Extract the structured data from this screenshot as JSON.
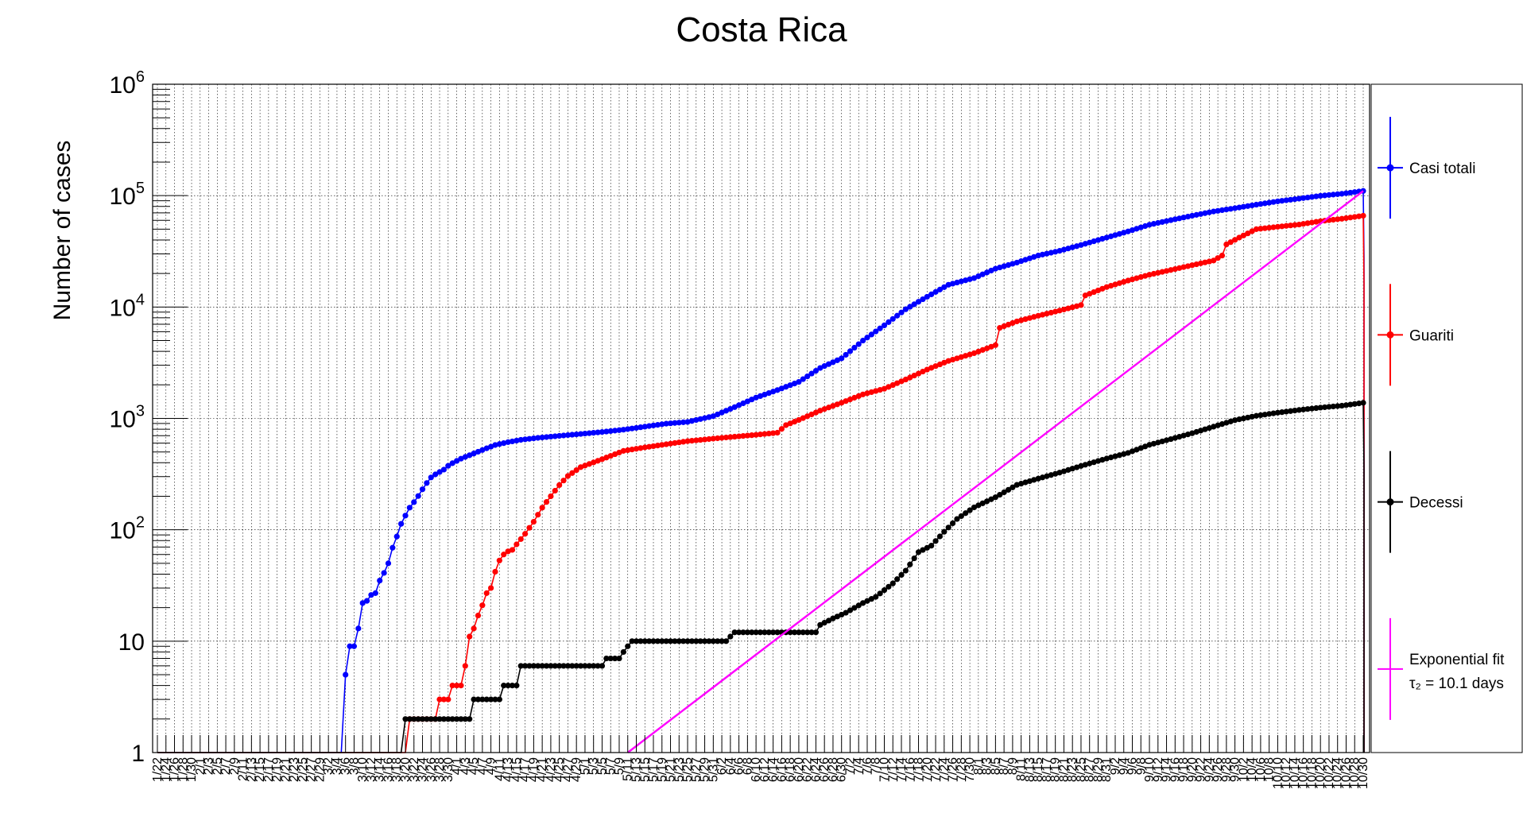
{
  "chart_data": {
    "type": "line",
    "title": "Costa Rica",
    "xlabel": "",
    "ylabel": "Number of cases",
    "yscale": "log",
    "ylim": [
      1,
      1000000
    ],
    "y_tick_labels": [
      {
        "value": 1,
        "base": "1",
        "exp": ""
      },
      {
        "value": 10,
        "base": "10",
        "exp": ""
      },
      {
        "value": 100,
        "base": "10",
        "exp": "2"
      },
      {
        "value": 1000,
        "base": "10",
        "exp": "3"
      },
      {
        "value": 10000,
        "base": "10",
        "exp": "4"
      },
      {
        "value": 100000,
        "base": "10",
        "exp": "5"
      },
      {
        "value": 1000000,
        "base": "10",
        "exp": "6"
      }
    ],
    "x_start": "1/22",
    "x_end": "10/30",
    "x_tick_step_days": 2,
    "grid": true,
    "legend_position": "right",
    "series": [
      {
        "name": "Casi totali",
        "color": "#0000ff",
        "points": [
          [
            "3/5",
            1
          ],
          [
            "3/6",
            5
          ],
          [
            "3/7",
            9
          ],
          [
            "3/8",
            9
          ],
          [
            "3/9",
            13
          ],
          [
            "3/10",
            22
          ],
          [
            "3/11",
            23
          ],
          [
            "3/12",
            26
          ],
          [
            "3/13",
            27
          ],
          [
            "3/14",
            35
          ],
          [
            "3/15",
            41
          ],
          [
            "3/16",
            50
          ],
          [
            "3/17",
            69
          ],
          [
            "3/18",
            87
          ],
          [
            "3/19",
            113
          ],
          [
            "3/20",
            134
          ],
          [
            "3/21",
            158
          ],
          [
            "3/22",
            177
          ],
          [
            "3/23",
            201
          ],
          [
            "3/24",
            231
          ],
          [
            "3/25",
            263
          ],
          [
            "3/26",
            295
          ],
          [
            "3/27",
            314
          ],
          [
            "3/28",
            330
          ],
          [
            "3/29",
            347
          ],
          [
            "3/30",
            375
          ],
          [
            "3/31",
            396
          ],
          [
            "4/2",
            435
          ],
          [
            "4/4",
            467
          ],
          [
            "4/6",
            502
          ],
          [
            "4/8",
            539
          ],
          [
            "4/10",
            577
          ],
          [
            "4/13",
            612
          ],
          [
            "4/16",
            642
          ],
          [
            "4/20",
            669
          ],
          [
            "4/25",
            697
          ],
          [
            "4/30",
            725
          ],
          [
            "5/5",
            755
          ],
          [
            "5/10",
            792
          ],
          [
            "5/15",
            843
          ],
          [
            "5/20",
            897
          ],
          [
            "5/25",
            930
          ],
          [
            "5/31",
            1047
          ],
          [
            "6/5",
            1263
          ],
          [
            "6/10",
            1538
          ],
          [
            "6/15",
            1796
          ],
          [
            "6/20",
            2127
          ],
          [
            "6/25",
            2836
          ],
          [
            "6/30",
            3459
          ],
          [
            "7/5",
            4996
          ],
          [
            "7/10",
            6845
          ],
          [
            "7/15",
            9546
          ],
          [
            "7/20",
            12361
          ],
          [
            "7/25",
            15841
          ],
          [
            "7/31",
            18187
          ],
          [
            "8/5",
            22081
          ],
          [
            "8/10",
            25057
          ],
          [
            "8/15",
            28995
          ],
          [
            "8/20",
            31951
          ],
          [
            "8/25",
            36033
          ],
          [
            "8/31",
            42041
          ],
          [
            "9/5",
            47684
          ],
          [
            "9/10",
            54776
          ],
          [
            "9/15",
            60229
          ],
          [
            "9/20",
            66021
          ],
          [
            "9/25",
            72049
          ],
          [
            "9/30",
            77129
          ],
          [
            "10/5",
            82970
          ],
          [
            "10/10",
            88879
          ],
          [
            "10/15",
            93946
          ],
          [
            "10/20",
            99602
          ],
          [
            "10/25",
            103886
          ],
          [
            "10/30",
            110148
          ]
        ]
      },
      {
        "name": "Guariti",
        "color": "#ff0000",
        "points": [
          [
            "3/20",
            1
          ],
          [
            "3/21",
            2
          ],
          [
            "3/27",
            2
          ],
          [
            "3/28",
            3
          ],
          [
            "3/30",
            3
          ],
          [
            "3/31",
            4
          ],
          [
            "4/2",
            4
          ],
          [
            "4/3",
            6
          ],
          [
            "4/4",
            11
          ],
          [
            "4/5",
            13
          ],
          [
            "4/6",
            17
          ],
          [
            "4/7",
            21
          ],
          [
            "4/8",
            27
          ],
          [
            "4/9",
            30
          ],
          [
            "4/10",
            42
          ],
          [
            "4/11",
            53
          ],
          [
            "4/12",
            60
          ],
          [
            "4/13",
            64
          ],
          [
            "4/14",
            66
          ],
          [
            "4/15",
            74
          ],
          [
            "4/17",
            92
          ],
          [
            "4/19",
            118
          ],
          [
            "4/21",
            158
          ],
          [
            "4/23",
            200
          ],
          [
            "4/25",
            252
          ],
          [
            "4/27",
            304
          ],
          [
            "4/30",
            365
          ],
          [
            "5/5",
            430
          ],
          [
            "5/10",
            511
          ],
          [
            "5/15",
            549
          ],
          [
            "5/20",
            586
          ],
          [
            "5/25",
            625
          ],
          [
            "5/31",
            658
          ],
          [
            "6/5",
            685
          ],
          [
            "6/10",
            712
          ],
          [
            "6/15",
            744
          ],
          [
            "6/17",
            870
          ],
          [
            "6/20",
            968
          ],
          [
            "6/25",
            1174
          ],
          [
            "6/30",
            1382
          ],
          [
            "7/5",
            1642
          ],
          [
            "7/10",
            1846
          ],
          [
            "7/15",
            2236
          ],
          [
            "7/20",
            2743
          ],
          [
            "7/25",
            3281
          ],
          [
            "7/31",
            3850
          ],
          [
            "8/5",
            4547
          ],
          [
            "8/6",
            6502
          ],
          [
            "8/10",
            7427
          ],
          [
            "8/15",
            8345
          ],
          [
            "8/20",
            9291
          ],
          [
            "8/25",
            10406
          ],
          [
            "8/26",
            12700
          ],
          [
            "8/31",
            15113
          ],
          [
            "9/5",
            17286
          ],
          [
            "9/10",
            19484
          ],
          [
            "9/15",
            21496
          ],
          [
            "9/20",
            23738
          ],
          [
            "9/25",
            26131
          ],
          [
            "9/27",
            29000
          ],
          [
            "9/28",
            36500
          ],
          [
            "10/1",
            42000
          ],
          [
            "10/5",
            50000
          ],
          [
            "10/10",
            52500
          ],
          [
            "10/15",
            55000
          ],
          [
            "10/20",
            59000
          ],
          [
            "10/25",
            62000
          ],
          [
            "10/30",
            66000
          ]
        ]
      },
      {
        "name": "Decessi",
        "color": "#000000",
        "points": [
          [
            "3/19",
            1
          ],
          [
            "3/20",
            2
          ],
          [
            "4/4",
            2
          ],
          [
            "4/5",
            3
          ],
          [
            "4/11",
            3
          ],
          [
            "4/12",
            4
          ],
          [
            "4/15",
            4
          ],
          [
            "4/16",
            6
          ],
          [
            "5/5",
            6
          ],
          [
            "5/6",
            7
          ],
          [
            "5/9",
            7
          ],
          [
            "5/10",
            8
          ],
          [
            "5/11",
            9
          ],
          [
            "5/12",
            10
          ],
          [
            "6/3",
            10
          ],
          [
            "6/4",
            11
          ],
          [
            "6/5",
            12
          ],
          [
            "6/24",
            12
          ],
          [
            "6/25",
            14
          ],
          [
            "6/28",
            16
          ],
          [
            "7/1",
            18
          ],
          [
            "7/5",
            22
          ],
          [
            "7/8",
            25
          ],
          [
            "7/12",
            33
          ],
          [
            "7/15",
            43
          ],
          [
            "7/18",
            63
          ],
          [
            "7/21",
            72
          ],
          [
            "7/24",
            96
          ],
          [
            "7/27",
            125
          ],
          [
            "7/31",
            159
          ],
          [
            "8/5",
            196
          ],
          [
            "8/10",
            253
          ],
          [
            "8/15",
            288
          ],
          [
            "8/20",
            326
          ],
          [
            "8/25",
            374
          ],
          [
            "8/31",
            436
          ],
          [
            "9/5",
            490
          ],
          [
            "9/10",
            579
          ],
          [
            "9/15",
            652
          ],
          [
            "9/20",
            736
          ],
          [
            "9/25",
            843
          ],
          [
            "9/30",
            964
          ],
          [
            "10/5",
            1055
          ],
          [
            "10/10",
            1125
          ],
          [
            "10/15",
            1190
          ],
          [
            "10/20",
            1250
          ],
          [
            "10/25",
            1300
          ],
          [
            "10/30",
            1380
          ]
        ]
      },
      {
        "name": "Exponential fit",
        "color": "#ff00ff",
        "points": [
          [
            "5/11",
            1
          ],
          [
            "10/30",
            110000
          ]
        ]
      }
    ],
    "legend": [
      {
        "label": "Casi totali",
        "sub": "",
        "color": "#0000ff"
      },
      {
        "label": "Guariti",
        "sub": "",
        "color": "#ff0000"
      },
      {
        "label": "Decessi",
        "sub": "",
        "color": "#000000"
      },
      {
        "label": "Exponential fit",
        "sub": "τ₂ = 10.1 days",
        "color": "#ff00ff"
      }
    ]
  }
}
